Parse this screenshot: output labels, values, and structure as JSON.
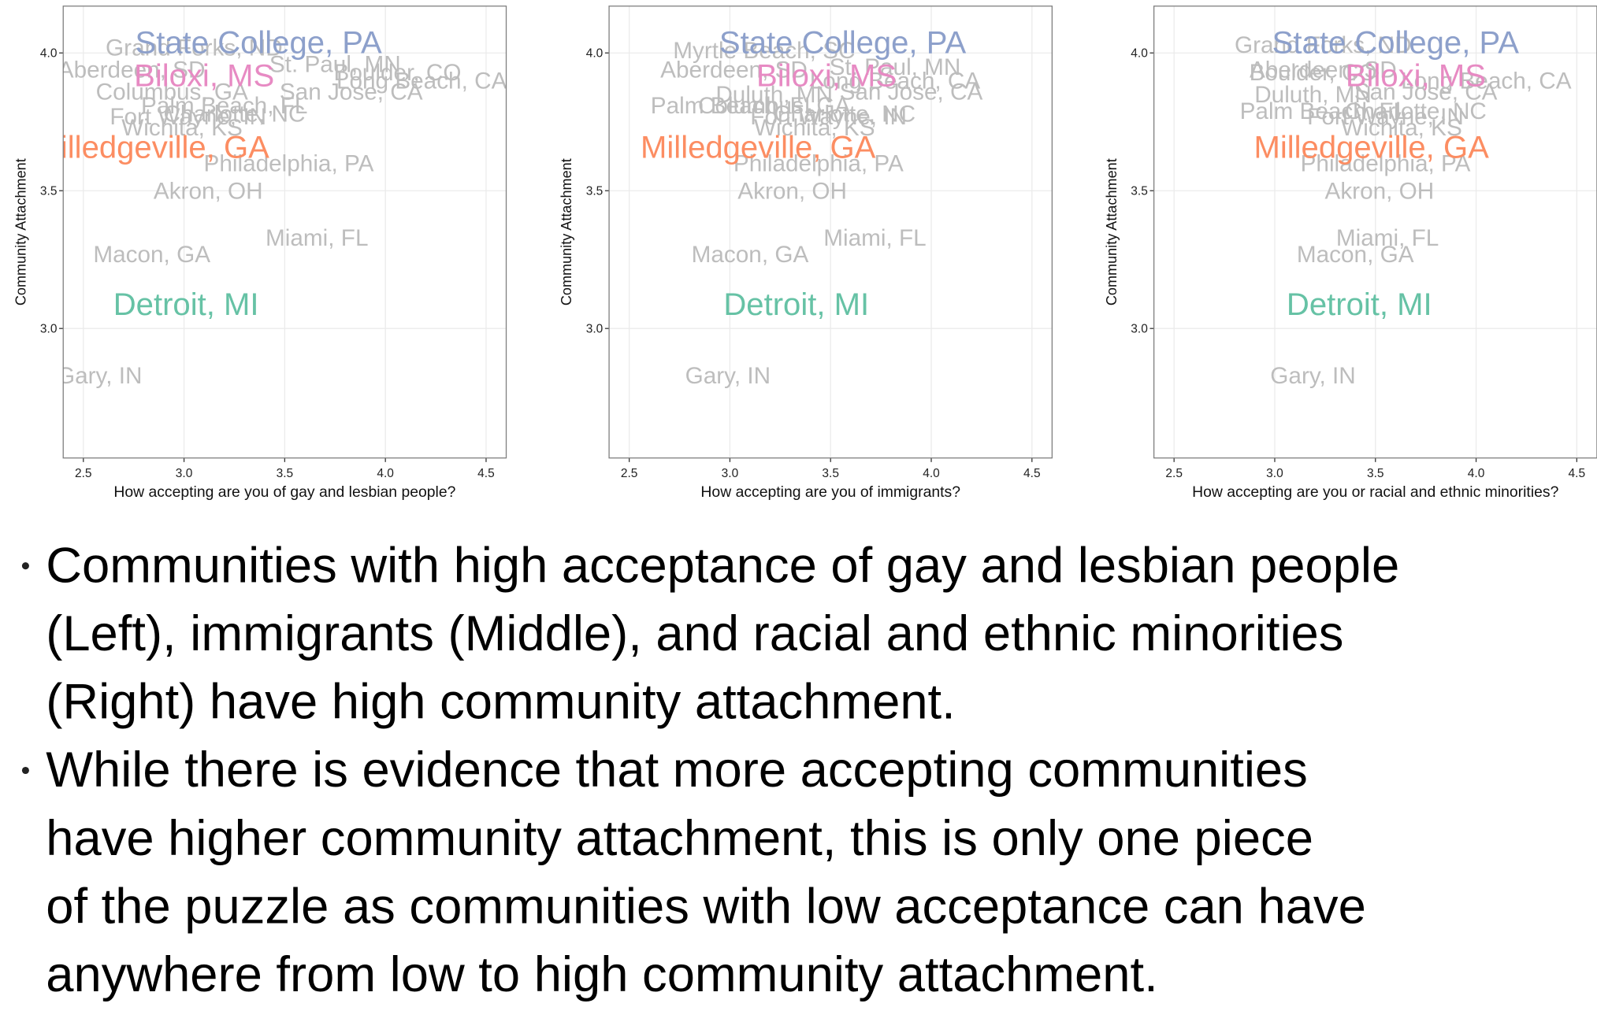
{
  "chart_data": [
    {
      "type": "scatter",
      "xlabel": "How accepting are you of gay and lesbian people?",
      "ylabel": "Community Attachment",
      "xlim": [
        2.4,
        4.6
      ],
      "ylim": [
        2.53,
        4.17
      ],
      "grid": true,
      "xticks": [
        2.5,
        {
          "value": 3,
          "label": "3.0"
        },
        3.5,
        {
          "value": 4,
          "label": "4.0"
        },
        4.5
      ],
      "yticks": [
        {
          "value": 3,
          "label": "3.0"
        },
        3.5,
        {
          "value": 4,
          "label": "4.0"
        }
      ],
      "labels": [
        "Grand Forks, ND",
        "Aberdeen, SD",
        "St. Paul, MN",
        "Boulder, CO",
        "Long Beach, CA",
        "San Jose, CA",
        "Columbus, GA",
        "Palm Beach, FL",
        "Charlotte, NC",
        "Fort Wayne, IN",
        "Wichita, KS",
        "Philadelphia, PA",
        "Akron, OH",
        "Macon, GA",
        "Miami, FL",
        "Gary, IN",
        "State College, PA",
        "Biloxi, MS",
        "Milledgeville, GA",
        "Detroit, MI"
      ],
      "x": [
        3.05,
        2.74,
        3.75,
        4.06,
        4.18,
        3.83,
        2.94,
        3.2,
        3.25,
        3.02,
        2.99,
        3.52,
        3.12,
        2.84,
        3.66,
        2.58,
        3.37,
        3.1,
        2.84,
        3.01
      ],
      "y": [
        4.02,
        3.94,
        3.96,
        3.93,
        3.9,
        3.86,
        3.86,
        3.81,
        3.78,
        3.77,
        3.73,
        3.6,
        3.5,
        3.27,
        3.33,
        2.83,
        4.04,
        3.92,
        3.66,
        3.09
      ],
      "colors": [
        "#bdbdbd",
        "#bdbdbd",
        "#bdbdbd",
        "#bdbdbd",
        "#bdbdbd",
        "#bdbdbd",
        "#bdbdbd",
        "#bdbdbd",
        "#bdbdbd",
        "#bdbdbd",
        "#bdbdbd",
        "#bdbdbd",
        "#bdbdbd",
        "#bdbdbd",
        "#bdbdbd",
        "#bdbdbd",
        "#8da0cb",
        "#e78ac3",
        "#fc8d62",
        "#66c2a5"
      ]
    },
    {
      "type": "scatter",
      "xlabel": "How accepting are you of immigrants?",
      "ylabel": "Community Attachment",
      "xlim": [
        2.4,
        4.6
      ],
      "ylim": [
        2.53,
        4.17
      ],
      "grid": true,
      "xticks": [
        2.5,
        {
          "value": 3,
          "label": "3.0"
        },
        3.5,
        {
          "value": 4,
          "label": "4.0"
        },
        4.5
      ],
      "yticks": [
        {
          "value": 3,
          "label": "3.0"
        },
        3.5,
        {
          "value": 4,
          "label": "4.0"
        }
      ],
      "labels": [
        "Myrtle Beach, SC",
        "Aberdeen, SD",
        "St. Paul, MN",
        "Long Beach, CA",
        "San Jose, CA",
        "Duluth, MN",
        "Palm Beach, FL",
        "Columbus, GA",
        "Charlotte, NC",
        "Fort Wayne, IN",
        "Wichita, KS",
        "Philadelphia, PA",
        "Akron, OH",
        "Macon, GA",
        "Miami, FL",
        "Gary, IN",
        "State College, PA",
        "Biloxi, MS",
        "Milledgeville, GA",
        "Detroit, MI"
      ],
      "x": [
        3.17,
        3.02,
        3.82,
        3.82,
        3.9,
        3.22,
        3.02,
        3.22,
        3.57,
        3.49,
        3.42,
        3.44,
        3.31,
        3.1,
        3.72,
        2.99,
        3.56,
        3.48,
        3.14,
        3.33
      ],
      "y": [
        4.01,
        3.94,
        3.95,
        3.9,
        3.86,
        3.85,
        3.81,
        3.81,
        3.78,
        3.77,
        3.73,
        3.6,
        3.5,
        3.27,
        3.33,
        2.83,
        4.04,
        3.92,
        3.66,
        3.09
      ],
      "colors": [
        "#bdbdbd",
        "#bdbdbd",
        "#bdbdbd",
        "#bdbdbd",
        "#bdbdbd",
        "#bdbdbd",
        "#bdbdbd",
        "#bdbdbd",
        "#bdbdbd",
        "#bdbdbd",
        "#bdbdbd",
        "#bdbdbd",
        "#bdbdbd",
        "#bdbdbd",
        "#bdbdbd",
        "#bdbdbd",
        "#8da0cb",
        "#e78ac3",
        "#fc8d62",
        "#66c2a5"
      ]
    },
    {
      "type": "scatter",
      "xlabel": "How accepting are you or racial and ethnic minorities?",
      "ylabel": "Community Attachment",
      "xlim": [
        2.4,
        4.6
      ],
      "ylim": [
        2.53,
        4.17
      ],
      "grid": true,
      "xticks": [
        2.5,
        {
          "value": 3,
          "label": "3.0"
        },
        3.5,
        {
          "value": 4,
          "label": "4.0"
        },
        4.5
      ],
      "yticks": [
        {
          "value": 3,
          "label": "3.0"
        },
        3.5,
        {
          "value": 4,
          "label": "4.0"
        }
      ],
      "labels": [
        "Grand Forks, ND",
        "Boulder, CO",
        "Aberdeen, SD",
        "Long Beach, CA",
        "San Jose, CA",
        "Duluth, MN",
        "Palm Beach, FL",
        "Charlotte, NC",
        "Fort Wayne, IN",
        "Wichita, KS",
        "Philadelphia, PA",
        "Akron, OH",
        "Macon, GA",
        "Miami, FL",
        "Gary, IN",
        "State College, PA",
        "Biloxi, MS",
        "Milledgeville, GA",
        "Detroit, MI"
      ],
      "x": [
        3.24,
        3.19,
        3.24,
        4.05,
        3.75,
        3.19,
        3.24,
        3.7,
        3.55,
        3.63,
        3.55,
        3.52,
        3.4,
        3.56,
        3.19,
        3.6,
        3.7,
        3.48,
        3.42
      ],
      "y": [
        4.03,
        3.93,
        3.94,
        3.9,
        3.86,
        3.85,
        3.79,
        3.79,
        3.77,
        3.73,
        3.6,
        3.5,
        3.27,
        3.33,
        2.83,
        4.04,
        3.92,
        3.66,
        3.09
      ],
      "colors": [
        "#bdbdbd",
        "#bdbdbd",
        "#bdbdbd",
        "#bdbdbd",
        "#bdbdbd",
        "#bdbdbd",
        "#bdbdbd",
        "#bdbdbd",
        "#bdbdbd",
        "#bdbdbd",
        "#bdbdbd",
        "#bdbdbd",
        "#bdbdbd",
        "#bdbdbd",
        "#bdbdbd",
        "#8da0cb",
        "#e78ac3",
        "#fc8d62",
        "#66c2a5"
      ]
    }
  ],
  "bullets": [
    [
      "Communities with high acceptance of gay and lesbian people",
      "(Left), immigrants (Middle), and racial and ethnic minorities",
      "(Right) have high community attachment."
    ],
    [
      "While there is evidence that more accepting communities",
      "have higher community attachment, this is only one piece",
      "of the puzzle as communities with low acceptance can have",
      "anywhere from low to high community attachment."
    ]
  ]
}
